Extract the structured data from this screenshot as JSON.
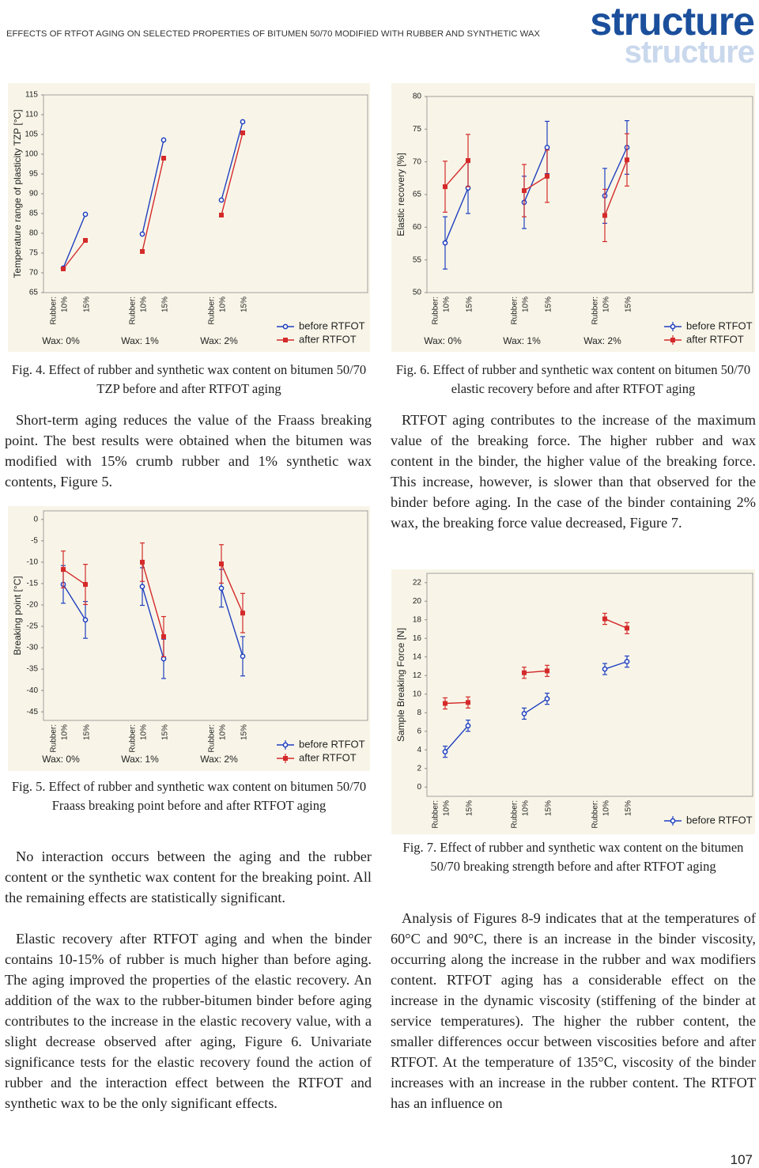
{
  "header": {
    "running_title": "EFFECTS OF RTFOT AGING ON SELECTED PROPERTIES OF BITUMEN 50/70 MODIFIED WITH RUBBER AND SYNTHETIC WAX",
    "logo": "structure"
  },
  "chart_data": [
    {
      "type": "line",
      "caption": "Fig. 4. Effect of rubber and synthetic wax content on bitumen 50/70 TZP before and after RTFOT aging",
      "y_label": "Temperature range of plasticity TZP [°C]",
      "x_label": "Rubber:",
      "categories": [
        "10%",
        "15%",
        "10%",
        "15%",
        "10%",
        "15%"
      ],
      "groups": [
        "Wax: 0%",
        "Wax: 1%",
        "Wax: 2%"
      ],
      "ylim": [
        65,
        115
      ],
      "yticks": [
        65,
        70,
        75,
        80,
        85,
        90,
        95,
        100,
        105,
        110,
        115
      ],
      "series": [
        {
          "name": "before RTFOT",
          "color": "#1f3fbf",
          "marker": "circle",
          "values": [
            71.2,
            84.8,
            79.8,
            103.6,
            88.4,
            108.2
          ]
        },
        {
          "name": "after RTFOT",
          "color": "#d42a2a",
          "marker": "square",
          "values": [
            71.0,
            78.2,
            75.4,
            99.0,
            84.6,
            105.4
          ]
        }
      ]
    },
    {
      "type": "line",
      "caption": "Fig. 5. Effect of rubber and synthetic wax content on bitumen 50/70 Fraass breaking point before and after RTFOT aging",
      "y_label": "Breaking point [°C]",
      "x_label": "Rubber:",
      "categories": [
        "10%",
        "15%",
        "10%",
        "15%",
        "10%",
        "15%"
      ],
      "groups": [
        "Wax: 0%",
        "Wax: 1%",
        "Wax: 2%"
      ],
      "ylim": [
        -47,
        2
      ],
      "yticks": [
        0,
        -5,
        -10,
        -15,
        -20,
        -25,
        -30,
        -35,
        -40,
        -45
      ],
      "series": [
        {
          "name": "before RTFOT",
          "color": "#1f3fbf",
          "marker": "circle",
          "values": [
            -15.2,
            -23.5,
            -15.7,
            -32.6,
            -16.1,
            -32.0
          ],
          "errors": [
            4.4,
            4.3,
            4.4,
            4.6,
            4.4,
            4.6
          ]
        },
        {
          "name": "after RTFOT",
          "color": "#d42a2a",
          "marker": "square",
          "values": [
            -11.7,
            -15.2,
            -10.0,
            -27.4,
            -10.4,
            -21.9
          ],
          "errors": [
            4.3,
            4.7,
            4.5,
            4.7,
            4.5,
            4.6
          ]
        }
      ]
    },
    {
      "type": "line",
      "caption": "Fig. 6. Effect of rubber and synthetic wax content on bitumen 50/70 elastic recovery before and after RTFOT aging",
      "y_label": "Elastic recovery [%]",
      "x_label": "Rubber:",
      "categories": [
        "10%",
        "15%",
        "10%",
        "15%",
        "10%",
        "15%"
      ],
      "groups": [
        "Wax: 0%",
        "Wax: 1%",
        "Wax: 2%"
      ],
      "ylim": [
        50,
        80
      ],
      "yticks": [
        50,
        55,
        60,
        65,
        70,
        75,
        80
      ],
      "series": [
        {
          "name": "before RTFOT",
          "color": "#1f3fbf",
          "marker": "circle",
          "values": [
            57.6,
            66.0,
            63.8,
            72.2,
            64.8,
            72.2
          ],
          "errors": [
            4.0,
            3.9,
            4.0,
            4.0,
            4.2,
            4.1
          ]
        },
        {
          "name": "after RTFOT",
          "color": "#d42a2a",
          "marker": "square",
          "values": [
            66.2,
            70.2,
            65.6,
            67.8,
            61.8,
            70.3
          ],
          "errors": [
            3.9,
            4.0,
            4.0,
            4.0,
            4.0,
            4.0
          ]
        }
      ]
    },
    {
      "type": "line",
      "caption": "Fig. 7. Effect of rubber and synthetic wax content on the bitumen 50/70 breaking strength before and after RTFOT aging",
      "y_label": "Sample Breaking Force [N]",
      "x_label": "Rubber:",
      "categories": [
        "10%",
        "15%",
        "10%",
        "15%",
        "10%",
        "15%"
      ],
      "ylim": [
        -1,
        23
      ],
      "yticks": [
        0,
        2,
        4,
        6,
        8,
        10,
        12,
        14,
        16,
        18,
        20,
        22
      ],
      "series": [
        {
          "name": "before RTFOT",
          "color": "#1f3fbf",
          "marker": "circle",
          "values": [
            3.8,
            6.6,
            7.9,
            9.5,
            12.7,
            13.5
          ],
          "errors": [
            0.6,
            0.6,
            0.6,
            0.6,
            0.6,
            0.6
          ]
        },
        {
          "color": "#d42a2a",
          "marker": "square",
          "values": [
            9.0,
            9.1,
            12.3,
            12.5,
            18.1,
            17.1
          ],
          "errors": [
            0.6,
            0.6,
            0.6,
            0.6,
            0.6,
            0.6
          ]
        }
      ]
    }
  ],
  "text": {
    "left": [
      "Short-term aging reduces the value of the Fraass breaking point. The best results were obtained when the bitumen was modified with 15% crumb rubber and 1% synthetic wax contents, Figure 5.",
      "No interaction occurs between the aging and the rubber content or the synthetic wax content for the breaking point. All the remaining effects are statistically significant.",
      "Elastic recovery after RTFOT aging and when the binder contains 10-15% of rubber is much higher than before aging. The aging improved the properties of the elastic recovery. An addition of the wax to the rubber-bitumen binder before aging contributes to the increase in the elastic recovery value, with a slight decrease observed after aging, Figure 6. Univariate significance tests for the elastic recovery found the action of rubber and the interaction effect between the RTFOT and synthetic wax to be the only significant effects."
    ],
    "right": [
      "RTFOT aging contributes to the increase of the maximum value of the breaking force. The higher rubber and wax content in the binder, the higher value of the breaking force. This increase, however, is slower than that observed for the binder before aging. In the case of the binder containing 2% wax, the breaking force value decreased, Figure 7.",
      "Analysis of Figures 8-9 indicates that at the temperatures of 60°C and 90°C, there is an increase in the binder viscosity, occurring along the increase in the rubber and wax modifiers content. RTFOT aging has a considerable effect on the increase in the dynamic viscosity (stiffening of the binder at service temperatures). The higher the rubber content, the smaller differences occur between viscosities before and after RTFOT. At the temperature of 135°C, viscosity of the binder increases with an increase in the rubber content. The RTFOT has an influence on"
    ]
  },
  "page_number": "107"
}
